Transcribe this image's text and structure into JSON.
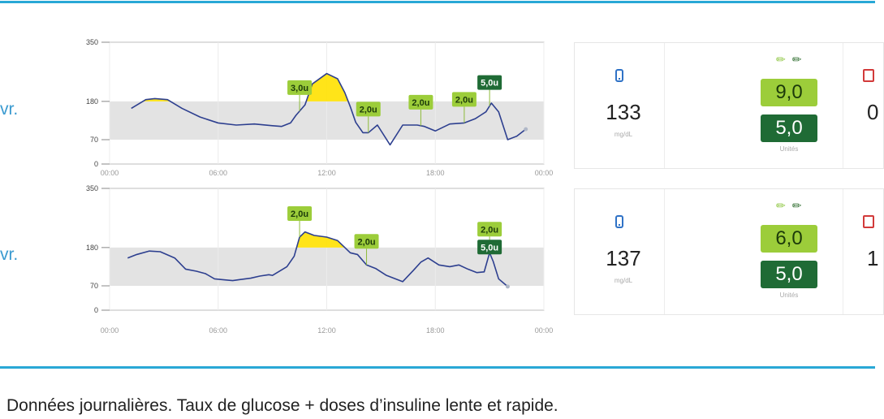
{
  "side_labels": [
    "vr.",
    "vr."
  ],
  "chart_data": [
    {
      "type": "line",
      "title": "",
      "xlabel": "",
      "ylabel": "",
      "x_tick_labels": [
        "00:00",
        "06:00",
        "12:00",
        "18:00",
        "00:00"
      ],
      "y_ticks": [
        0,
        70,
        180,
        350
      ],
      "ylim": [
        0,
        350
      ],
      "xlim": [
        0,
        24
      ],
      "target_range": [
        70,
        180
      ],
      "series": [
        {
          "x": [
            1.2,
            2.0,
            2.5,
            3.2,
            4.0,
            5.0,
            6.0,
            7.0,
            8.0,
            9.0,
            9.5,
            10.0,
            10.3,
            10.8,
            11.2,
            12.0,
            12.6,
            13.0,
            13.3,
            13.6,
            14.0,
            14.3,
            14.8,
            15.5,
            16.2,
            17.0,
            17.4,
            18.0,
            18.8,
            19.6,
            20.2,
            20.5,
            20.8,
            21.1,
            21.5,
            22.0,
            22.5,
            23.0
          ],
          "y": [
            160,
            185,
            188,
            185,
            160,
            135,
            118,
            112,
            115,
            110,
            108,
            118,
            140,
            170,
            230,
            260,
            245,
            205,
            165,
            120,
            90,
            90,
            112,
            55,
            112,
            112,
            108,
            95,
            115,
            118,
            130,
            140,
            150,
            175,
            150,
            70,
            80,
            100
          ]
        }
      ],
      "annotations": [
        {
          "text": "3,0u",
          "x": 10.5,
          "kind": "rapid"
        },
        {
          "text": "2,0u",
          "x": 14.3,
          "kind": "rapid"
        },
        {
          "text": "2,0u",
          "x": 17.2,
          "kind": "rapid"
        },
        {
          "text": "2,0u",
          "x": 19.6,
          "kind": "rapid"
        },
        {
          "text": "5,0u",
          "x": 21.0,
          "kind": "slow"
        }
      ]
    },
    {
      "type": "line",
      "title": "",
      "xlabel": "",
      "ylabel": "",
      "x_tick_labels": [
        "00:00",
        "06:00",
        "12:00",
        "18:00",
        "00:00"
      ],
      "y_ticks": [
        0,
        70,
        180,
        350
      ],
      "ylim": [
        0,
        350
      ],
      "xlim": [
        0,
        24
      ],
      "target_range": [
        70,
        180
      ],
      "series": [
        {
          "x": [
            1.0,
            1.5,
            2.2,
            2.8,
            3.6,
            4.2,
            4.8,
            5.3,
            5.8,
            6.2,
            6.8,
            7.2,
            7.8,
            8.3,
            8.8,
            9.0,
            9.8,
            10.2,
            10.5,
            10.8,
            11.3,
            12.0,
            12.6,
            13.0,
            13.3,
            13.7,
            14.2,
            14.7,
            15.3,
            16.2,
            16.8,
            17.2,
            17.6,
            18.2,
            18.8,
            19.3,
            19.8,
            20.3,
            20.7,
            21.0,
            21.2,
            21.5,
            22.0
          ],
          "y": [
            150,
            160,
            170,
            168,
            150,
            118,
            112,
            105,
            90,
            88,
            85,
            88,
            92,
            98,
            102,
            100,
            125,
            155,
            210,
            225,
            215,
            210,
            200,
            180,
            165,
            160,
            130,
            120,
            100,
            82,
            115,
            138,
            150,
            130,
            125,
            130,
            118,
            108,
            110,
            165,
            140,
            90,
            68
          ]
        }
      ],
      "annotations": [
        {
          "text": "2,0u",
          "x": 10.5,
          "kind": "rapid"
        },
        {
          "text": "2,0u",
          "x": 14.2,
          "kind": "rapid"
        },
        {
          "text": "2,0u",
          "x": 21.0,
          "kind": "rapid"
        },
        {
          "text": "5,0u",
          "x": 21.0,
          "kind": "slow"
        }
      ]
    }
  ],
  "summary_cards": [
    {
      "glucose": "133",
      "glucose_unit": "mg/dL",
      "rapid_dose": "9,0",
      "slow_dose": "5,0",
      "dose_unit": "Unités",
      "third_value": "0"
    },
    {
      "glucose": "137",
      "glucose_unit": "mg/dL",
      "rapid_dose": "6,0",
      "slow_dose": "5,0",
      "dose_unit": "Unités",
      "third_value": "1"
    }
  ],
  "colors": {
    "line": "#2d3f8f",
    "target_band": "#e3e3e3",
    "hyper_fill": "#ffe100",
    "rapid_badge": "#9ccd3a",
    "slow_badge": "#1f6b35",
    "rule": "#29a8d6"
  },
  "caption": "Données journalières. Taux de glucose + doses d’insuline lente et rapide."
}
